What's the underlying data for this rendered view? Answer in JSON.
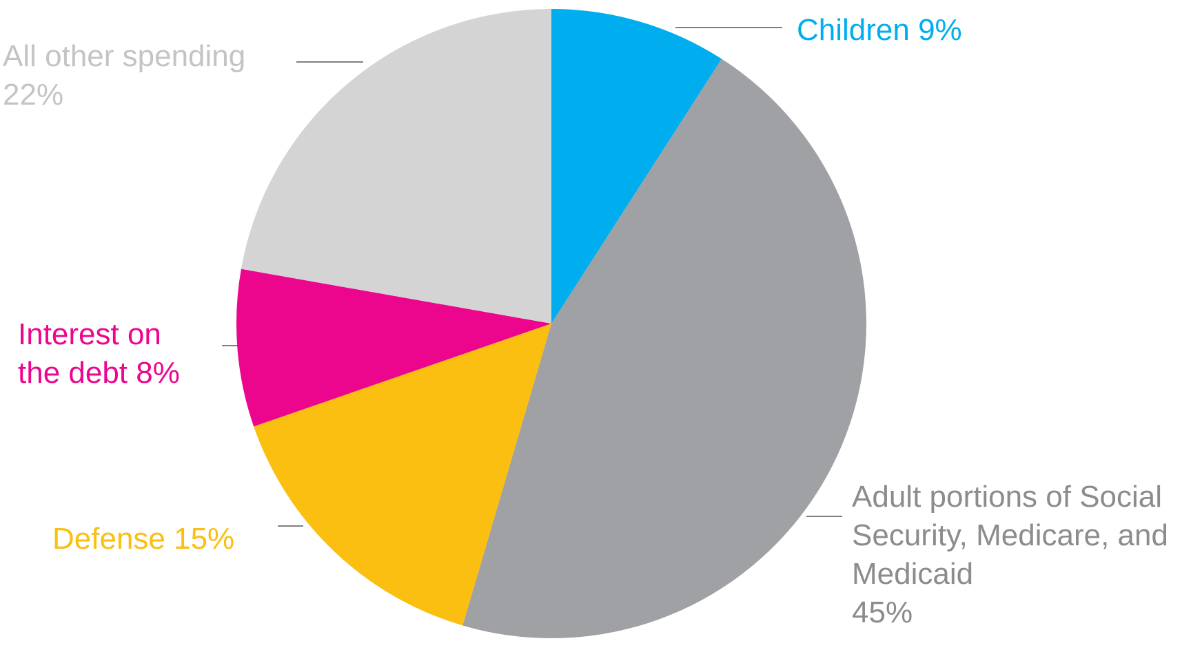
{
  "chart_data": {
    "type": "pie",
    "title": "",
    "start_angle_deg": 0,
    "direction": "clockwise",
    "slices": [
      {
        "name": "Children",
        "value": 9,
        "color": "#00AEEF",
        "label_lines": [
          "Children 9%"
        ]
      },
      {
        "name": "Adult portions of Social Security, Medicare, and Medicaid",
        "value": 45,
        "color": "#A0A1A5",
        "label_color": "#8C8C8C",
        "label_lines": [
          "Adult portions of Social",
          "Security, Medicare, and",
          "Medicaid",
          "45%"
        ]
      },
      {
        "name": "Defense",
        "value": 15,
        "color": "#FABF10",
        "label_lines": [
          "Defense 15%"
        ]
      },
      {
        "name": "Interest on the debt",
        "value": 8,
        "color": "#EC068D",
        "label_lines": [
          "Interest on",
          "the debt 8%"
        ]
      },
      {
        "name": "All other spending",
        "value": 22,
        "color": "#D4D4D4",
        "label_color": "#C4C4C4",
        "label_lines": [
          "All other spending",
          "22%"
        ]
      }
    ]
  }
}
